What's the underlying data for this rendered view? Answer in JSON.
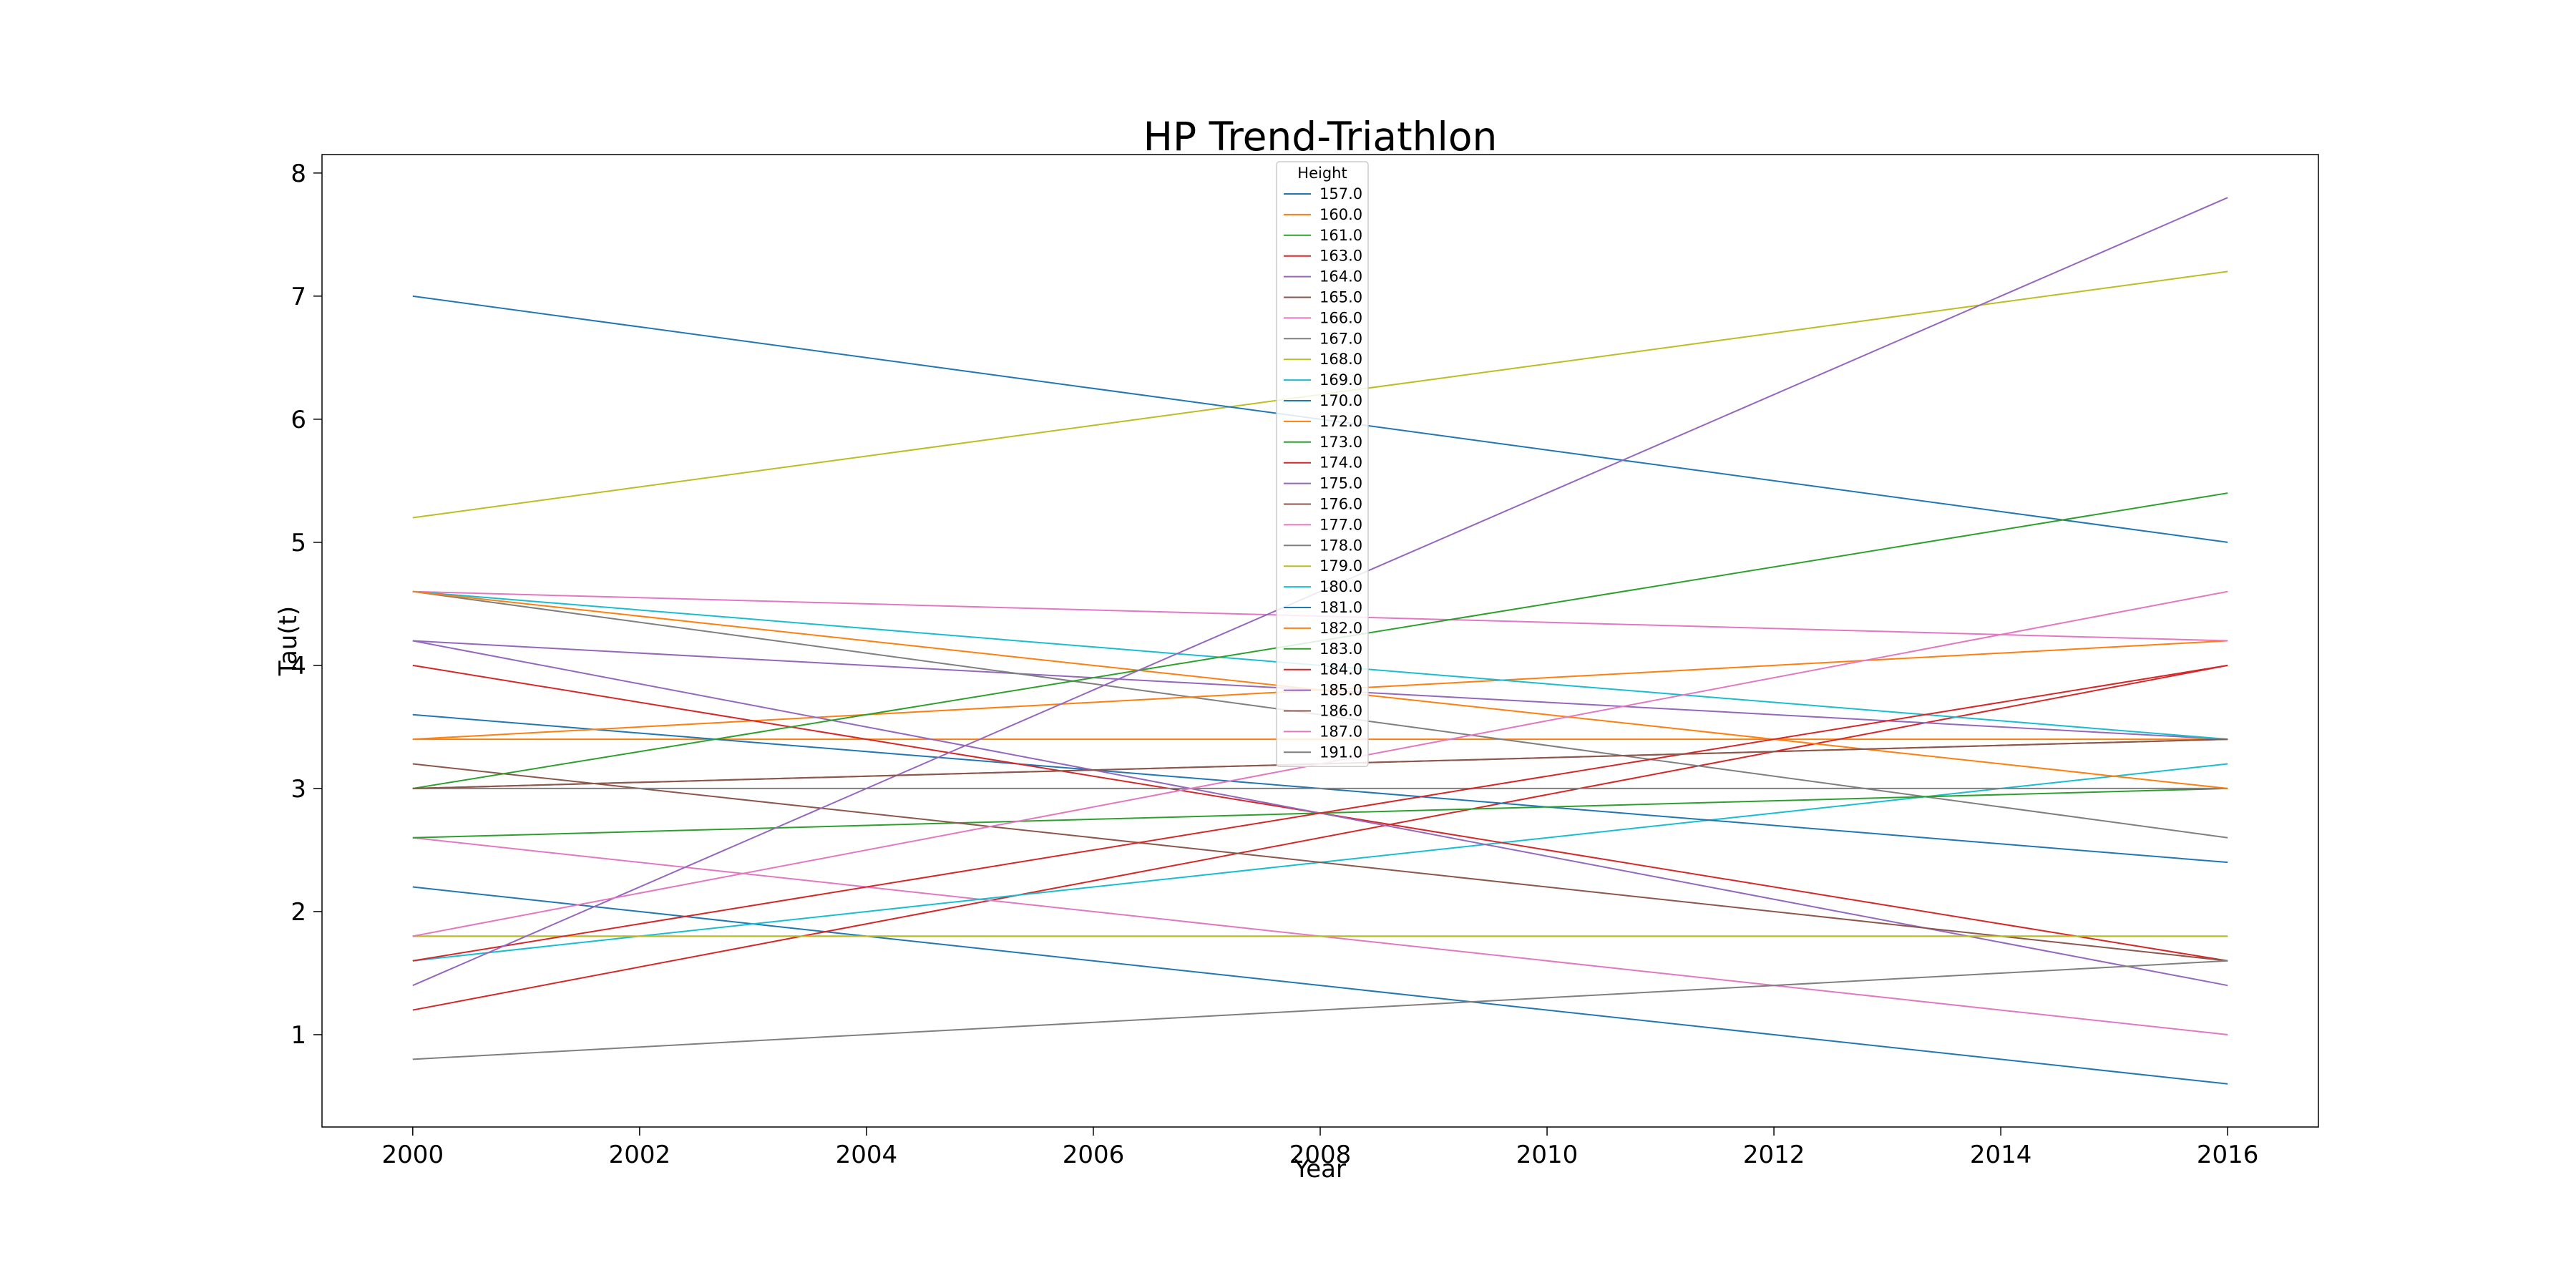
{
  "chart_data": {
    "type": "line",
    "title": "HP Trend-Triathlon",
    "xlabel": "Year",
    "ylabel": "Tau(t)",
    "xlim": [
      1999.2,
      2016.8
    ],
    "ylim": [
      0.25,
      8.15
    ],
    "xticks": [
      2000,
      2002,
      2004,
      2006,
      2008,
      2010,
      2012,
      2014,
      2016
    ],
    "yticks": [
      1,
      2,
      3,
      4,
      5,
      6,
      7,
      8
    ],
    "grid": false,
    "legend": {
      "title": "Height",
      "placement": "top-center"
    },
    "x": [
      2000,
      2016
    ],
    "series": [
      {
        "name": "157.0",
        "color": "#1f77b4",
        "values": [
          2.2,
          0.6
        ]
      },
      {
        "name": "160.0",
        "color": "#ff7f0e",
        "values": [
          3.4,
          3.4
        ]
      },
      {
        "name": "161.0",
        "color": "#2ca02c",
        "values": [
          1.8,
          1.8
        ]
      },
      {
        "name": "163.0",
        "color": "#d62728",
        "values": [
          1.2,
          4.0
        ]
      },
      {
        "name": "164.0",
        "color": "#9467bd",
        "values": [
          4.2,
          3.4
        ]
      },
      {
        "name": "165.0",
        "color": "#8c564b",
        "values": [
          3.0,
          3.4
        ]
      },
      {
        "name": "166.0",
        "color": "#e377c2",
        "values": [
          2.6,
          1.0
        ]
      },
      {
        "name": "167.0",
        "color": "#7f7f7f",
        "values": [
          4.6,
          2.6
        ]
      },
      {
        "name": "168.0",
        "color": "#bcbd22",
        "values": [
          5.2,
          7.2
        ]
      },
      {
        "name": "169.0",
        "color": "#17becf",
        "values": [
          1.6,
          3.2
        ]
      },
      {
        "name": "170.0",
        "color": "#1f77b4",
        "values": [
          3.6,
          2.4
        ]
      },
      {
        "name": "172.0",
        "color": "#ff7f0e",
        "values": [
          3.4,
          4.2
        ]
      },
      {
        "name": "173.0",
        "color": "#2ca02c",
        "values": [
          2.6,
          3.0
        ]
      },
      {
        "name": "174.0",
        "color": "#d62728",
        "values": [
          4.0,
          1.6
        ]
      },
      {
        "name": "175.0",
        "color": "#9467bd",
        "values": [
          4.2,
          1.4
        ]
      },
      {
        "name": "176.0",
        "color": "#8c564b",
        "values": [
          3.2,
          1.6
        ]
      },
      {
        "name": "177.0",
        "color": "#e377c2",
        "values": [
          4.6,
          4.2
        ]
      },
      {
        "name": "178.0",
        "color": "#7f7f7f",
        "values": [
          3.0,
          3.0
        ]
      },
      {
        "name": "179.0",
        "color": "#bcbd22",
        "values": [
          1.8,
          1.8
        ]
      },
      {
        "name": "180.0",
        "color": "#17becf",
        "values": [
          4.6,
          3.4
        ]
      },
      {
        "name": "181.0",
        "color": "#1f77b4",
        "values": [
          7.0,
          5.0
        ]
      },
      {
        "name": "182.0",
        "color": "#ff7f0e",
        "values": [
          4.6,
          3.0
        ]
      },
      {
        "name": "183.0",
        "color": "#2ca02c",
        "values": [
          3.0,
          5.4
        ]
      },
      {
        "name": "184.0",
        "color": "#d62728",
        "values": [
          1.6,
          4.0
        ]
      },
      {
        "name": "185.0",
        "color": "#9467bd",
        "values": [
          1.4,
          7.8
        ]
      },
      {
        "name": "186.0",
        "color": "#8c564b",
        "values": [
          3.0,
          3.4
        ]
      },
      {
        "name": "187.0",
        "color": "#e377c2",
        "values": [
          1.8,
          4.6
        ]
      },
      {
        "name": "191.0",
        "color": "#7f7f7f",
        "values": [
          0.8,
          1.6
        ]
      }
    ]
  }
}
